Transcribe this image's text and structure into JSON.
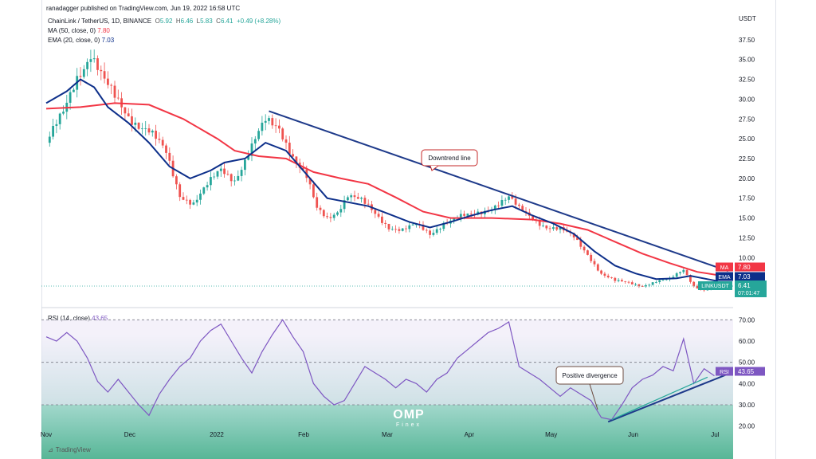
{
  "header": {
    "published": "ranadagger published on TradingView.com, Jun 19, 2022 16:58 UTC",
    "symbol_line": "ChainLink / TetherUS, 1D, BINANCE",
    "ohlc": {
      "o_label": "O",
      "o": "5.92",
      "h_label": "H",
      "h": "6.46",
      "l_label": "L",
      "l": "5.83",
      "c_label": "C",
      "c": "6.41",
      "change": "+0.49 (+8.28%)"
    },
    "ma_label": "MA (50, close, 0)",
    "ma_value": "7.80",
    "ema_label": "EMA (20, close, 0)",
    "ema_value": "7.03",
    "rsi_label": "RSI (14, close)",
    "rsi_value": "43.65"
  },
  "colors": {
    "up": "#26a69a",
    "down": "#ef5350",
    "ma": "#f23645",
    "ema": "#0d2f8a",
    "trend": "#1e3a8a",
    "rsi": "#7e57c2",
    "rsi_band": "#ede7f6"
  },
  "badges": {
    "ma": {
      "label": "MA",
      "value": "7.80"
    },
    "ema": {
      "label": "EMA",
      "value": "7.03"
    },
    "price": {
      "symbol": "LINKUSDT",
      "value": "6.41",
      "countdown": "07:01:47"
    },
    "rsi": {
      "label": "RSI",
      "value": "43.65"
    }
  },
  "annotations": {
    "downtrend": "Downtrend line",
    "divergence": "Positive divergence"
  },
  "branding": {
    "tradingview": "TradingView",
    "omp": "OMP",
    "finex": "Finex"
  },
  "chart_data": [
    {
      "type": "candlestick",
      "price_unit": "USDT",
      "x_ticks": [
        "Nov",
        "Dec",
        "2022",
        "Feb",
        "Mar",
        "Apr",
        "May",
        "Jun",
        "Jul"
      ],
      "y_ticks": [
        37.5,
        35.0,
        32.5,
        30.0,
        27.5,
        25.0,
        22.5,
        20.0,
        17.5,
        15.0,
        12.5,
        10.0
      ],
      "ylim": [
        4.5,
        39.5
      ],
      "close_path": [
        [
          0,
          24.5
        ],
        [
          5,
          28
        ],
        [
          9,
          33
        ],
        [
          13,
          36
        ],
        [
          17,
          32
        ],
        [
          20,
          30
        ],
        [
          24,
          28
        ],
        [
          30,
          26
        ],
        [
          35,
          23
        ],
        [
          39,
          18
        ],
        [
          43,
          17
        ],
        [
          47,
          19
        ],
        [
          51,
          21
        ],
        [
          55,
          20
        ],
        [
          60,
          24
        ],
        [
          64,
          27
        ],
        [
          68,
          26.5
        ],
        [
          72,
          23
        ],
        [
          76,
          20
        ],
        [
          79,
          16
        ],
        [
          82,
          15
        ],
        [
          85,
          16
        ],
        [
          88,
          18
        ],
        [
          92,
          17
        ],
        [
          96,
          15.5
        ],
        [
          100,
          14
        ],
        [
          104,
          13.5
        ],
        [
          108,
          14
        ],
        [
          112,
          13
        ],
        [
          116,
          14.5
        ],
        [
          120,
          15
        ],
        [
          124,
          15.2
        ],
        [
          128,
          16
        ],
        [
          132,
          17
        ],
        [
          135,
          17.5
        ],
        [
          138,
          16
        ],
        [
          142,
          15
        ],
        [
          146,
          14
        ],
        [
          150,
          13.5
        ],
        [
          154,
          12.5
        ],
        [
          158,
          10.5
        ],
        [
          162,
          8
        ],
        [
          166,
          7
        ],
        [
          170,
          6.8
        ],
        [
          174,
          6.5
        ],
        [
          178,
          7
        ],
        [
          182,
          7.2
        ],
        [
          186,
          8.5
        ],
        [
          189,
          6.5
        ],
        [
          192,
          5.9
        ],
        [
          195,
          6.4
        ]
      ],
      "ma_50": [
        [
          0,
          28.8
        ],
        [
          10,
          29
        ],
        [
          20,
          29.5
        ],
        [
          30,
          29.3
        ],
        [
          40,
          27.5
        ],
        [
          50,
          25
        ],
        [
          55,
          23.5
        ],
        [
          62,
          22.8
        ],
        [
          70,
          22.5
        ],
        [
          78,
          20.8
        ],
        [
          86,
          20
        ],
        [
          94,
          19.3
        ],
        [
          102,
          17.6
        ],
        [
          110,
          15.8
        ],
        [
          118,
          15
        ],
        [
          130,
          15
        ],
        [
          142,
          14.8
        ],
        [
          150,
          14.3
        ],
        [
          158,
          13.5
        ],
        [
          166,
          12
        ],
        [
          174,
          10.5
        ],
        [
          182,
          9.3
        ],
        [
          190,
          8.2
        ],
        [
          196,
          7.8
        ]
      ],
      "ema_20": [
        [
          0,
          29.5
        ],
        [
          6,
          31
        ],
        [
          10,
          32.5
        ],
        [
          14,
          31.5
        ],
        [
          18,
          29
        ],
        [
          24,
          27
        ],
        [
          30,
          24.5
        ],
        [
          36,
          21.5
        ],
        [
          42,
          20
        ],
        [
          48,
          21
        ],
        [
          52,
          22
        ],
        [
          58,
          22.5
        ],
        [
          64,
          24.5
        ],
        [
          70,
          23.5
        ],
        [
          76,
          20.5
        ],
        [
          82,
          17.5
        ],
        [
          88,
          17
        ],
        [
          94,
          16.5
        ],
        [
          100,
          15.5
        ],
        [
          106,
          14.5
        ],
        [
          112,
          13.8
        ],
        [
          118,
          14.5
        ],
        [
          124,
          15.3
        ],
        [
          130,
          16
        ],
        [
          136,
          16.5
        ],
        [
          142,
          15.3
        ],
        [
          148,
          14.3
        ],
        [
          154,
          13
        ],
        [
          160,
          10.8
        ],
        [
          166,
          9
        ],
        [
          172,
          8
        ],
        [
          178,
          7.3
        ],
        [
          184,
          7.4
        ],
        [
          188,
          7.7
        ],
        [
          196,
          7.03
        ]
      ],
      "downtrend_line": [
        [
          65,
          28.5
        ],
        [
          199,
          8.3
        ]
      ],
      "last_price": 6.41
    },
    {
      "type": "line",
      "name": "RSI (14, close)",
      "y_ticks": [
        70.0,
        60.0,
        50.0,
        40.0,
        30.0,
        20.0
      ],
      "ylim": [
        15,
        72
      ],
      "band": [
        30,
        70
      ],
      "values": [
        [
          0,
          62
        ],
        [
          3,
          60
        ],
        [
          6,
          64
        ],
        [
          9,
          60
        ],
        [
          12,
          52
        ],
        [
          15,
          41
        ],
        [
          18,
          36
        ],
        [
          21,
          42
        ],
        [
          24,
          36
        ],
        [
          27,
          30
        ],
        [
          30,
          25
        ],
        [
          33,
          35
        ],
        [
          36,
          42
        ],
        [
          39,
          48
        ],
        [
          42,
          52
        ],
        [
          45,
          60
        ],
        [
          48,
          65
        ],
        [
          51,
          68
        ],
        [
          54,
          60
        ],
        [
          57,
          52
        ],
        [
          60,
          45
        ],
        [
          63,
          55
        ],
        [
          66,
          63
        ],
        [
          69,
          70
        ],
        [
          72,
          62
        ],
        [
          75,
          55
        ],
        [
          78,
          40
        ],
        [
          81,
          34
        ],
        [
          84,
          30
        ],
        [
          87,
          32
        ],
        [
          90,
          40
        ],
        [
          93,
          48
        ],
        [
          96,
          45
        ],
        [
          99,
          42
        ],
        [
          102,
          38
        ],
        [
          105,
          42
        ],
        [
          108,
          40
        ],
        [
          111,
          36
        ],
        [
          114,
          42
        ],
        [
          117,
          45
        ],
        [
          120,
          52
        ],
        [
          123,
          56
        ],
        [
          126,
          60
        ],
        [
          129,
          64
        ],
        [
          132,
          66
        ],
        [
          135,
          69
        ],
        [
          138,
          48
        ],
        [
          141,
          45
        ],
        [
          144,
          42
        ],
        [
          147,
          38
        ],
        [
          150,
          34
        ],
        [
          153,
          38
        ],
        [
          156,
          35
        ],
        [
          159,
          32
        ],
        [
          162,
          24
        ],
        [
          165,
          23
        ],
        [
          168,
          30
        ],
        [
          171,
          38
        ],
        [
          174,
          42
        ],
        [
          177,
          44
        ],
        [
          180,
          48
        ],
        [
          183,
          46
        ],
        [
          186,
          61
        ],
        [
          189,
          40
        ],
        [
          192,
          47
        ],
        [
          195,
          43.65
        ]
      ],
      "support_line": [
        [
          164,
          22
        ],
        [
          199,
          44.5
        ]
      ],
      "divergence_line": [
        [
          165,
          23
        ],
        [
          193,
          43
        ]
      ]
    }
  ]
}
